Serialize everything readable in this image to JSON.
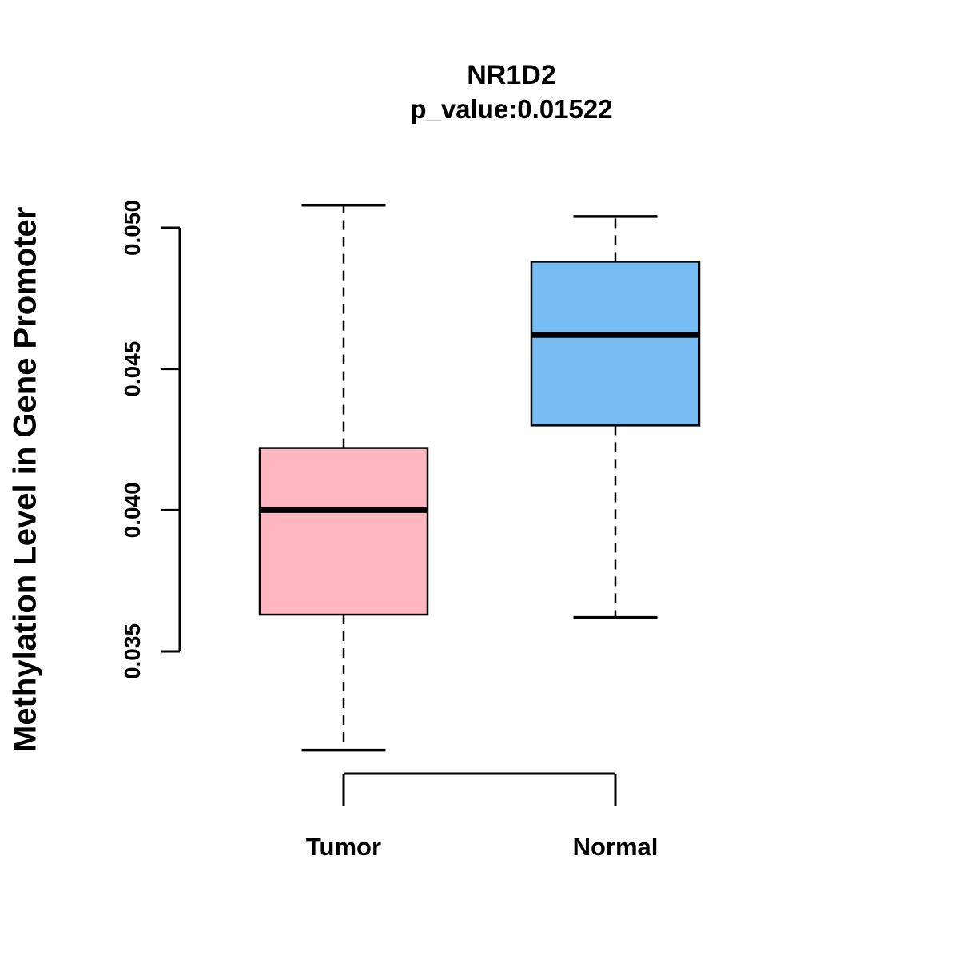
{
  "chart_data": {
    "type": "boxplot",
    "title": "NR1D2",
    "subtitle": "p_value:0.01522",
    "ylabel": "Methylation Level in Gene Promoter",
    "xlabel": "",
    "categories": [
      "Tumor",
      "Normal"
    ],
    "y_ticks": [
      0.035,
      0.04,
      0.045,
      0.05
    ],
    "y_tick_labels": [
      "0.035",
      "0.040",
      "0.045",
      "0.050"
    ],
    "ylim": [
      0.031,
      0.051
    ],
    "grid": false,
    "legend": "none",
    "series": [
      {
        "name": "Tumor",
        "lower_whisker": 0.0315,
        "q1": 0.0363,
        "median": 0.04,
        "q3": 0.0422,
        "upper_whisker": 0.0508,
        "color": "#ffb6c1"
      },
      {
        "name": "Normal",
        "lower_whisker": 0.0362,
        "q1": 0.043,
        "median": 0.0462,
        "q3": 0.0488,
        "upper_whisker": 0.0504,
        "color": "#77bdf4"
      }
    ],
    "colors": {
      "tumor_fill": "#ffb6c1",
      "normal_fill": "#77bdf4",
      "stroke": "#000000"
    }
  }
}
